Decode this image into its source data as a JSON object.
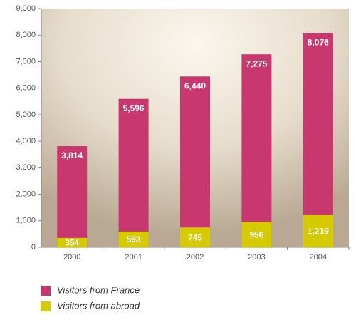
{
  "chart_data": {
    "type": "bar",
    "overlap": true,
    "categories": [
      "2000",
      "2001",
      "2002",
      "2003",
      "2004"
    ],
    "series": [
      {
        "name": "Visitors from France",
        "color": "#c8386e",
        "values": [
          3814,
          5596,
          6440,
          7275,
          8076
        ],
        "value_labels": [
          "3,814",
          "5,596",
          "6,440",
          "7,275",
          "8,076"
        ]
      },
      {
        "name": "Visitors from abroad",
        "color": "#d6cb00",
        "values": [
          354,
          593,
          745,
          956,
          1219
        ],
        "value_labels": [
          "354",
          "593",
          "745",
          "956",
          "1,219"
        ]
      }
    ],
    "ylim": [
      0,
      9000
    ],
    "yticks": [
      0,
      {
        "value": 1000,
        "label": "1,000"
      },
      {
        "value": 2000,
        "label": "2,000"
      },
      {
        "value": 3000,
        "label": "3,000"
      },
      {
        "value": 4000,
        "label": "4,000"
      },
      {
        "value": 5000,
        "label": "5,000"
      },
      {
        "value": 6000,
        "label": "6,000"
      },
      {
        "value": 7000,
        "label": "7,000"
      },
      {
        "value": 8000,
        "label": "8,000"
      },
      {
        "value": 9000,
        "label": "9,000"
      }
    ],
    "grid": false
  }
}
